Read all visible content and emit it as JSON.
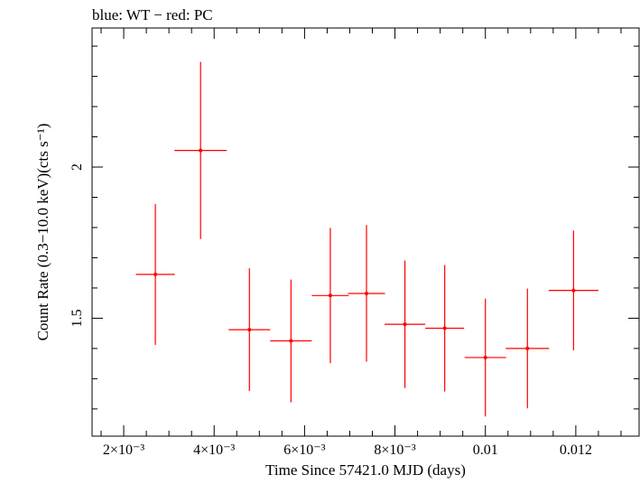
{
  "chart_data": {
    "type": "scatter",
    "title": "blue: WT − red: PC",
    "xlabel": "Time Since 57421.0 MJD (days)",
    "ylabel": "Count Rate (0.3−10.0 keV)(cts s⁻¹)",
    "xlim": [
      0.0013,
      0.0134
    ],
    "ylim": [
      1.11,
      2.46
    ],
    "x_ticks": [
      {
        "value": 0.002,
        "label": "2×10⁻³"
      },
      {
        "value": 0.004,
        "label": "4×10⁻³"
      },
      {
        "value": 0.006,
        "label": "6×10⁻³"
      },
      {
        "value": 0.008,
        "label": "8×10⁻³"
      },
      {
        "value": 0.01,
        "label": "0.01"
      },
      {
        "value": 0.012,
        "label": "0.012"
      }
    ],
    "y_ticks": [
      {
        "value": 1.5,
        "label": "1.5"
      },
      {
        "value": 2.0,
        "label": "2"
      }
    ],
    "grid": false,
    "series": [
      {
        "name": "PC",
        "color": "#ff0000",
        "points": [
          {
            "x": 0.0027,
            "y": 1.645,
            "xerr": 0.00043,
            "yerr": 0.233
          },
          {
            "x": 0.0037,
            "y": 2.055,
            "xerr": 0.00058,
            "yerr": 0.293
          },
          {
            "x": 0.00478,
            "y": 1.462,
            "xerr": 0.00046,
            "yerr": 0.203
          },
          {
            "x": 0.0057,
            "y": 1.425,
            "xerr": 0.00046,
            "yerr": 0.203
          },
          {
            "x": 0.00657,
            "y": 1.575,
            "xerr": 0.00041,
            "yerr": 0.224
          },
          {
            "x": 0.00737,
            "y": 1.582,
            "xerr": 0.00041,
            "yerr": 0.226
          },
          {
            "x": 0.00822,
            "y": 1.48,
            "xerr": 0.00045,
            "yerr": 0.211
          },
          {
            "x": 0.0091,
            "y": 1.467,
            "xerr": 0.00043,
            "yerr": 0.209
          },
          {
            "x": 0.01,
            "y": 1.37,
            "xerr": 0.00046,
            "yerr": 0.195
          },
          {
            "x": 0.01093,
            "y": 1.4,
            "xerr": 0.00048,
            "yerr": 0.198
          },
          {
            "x": 0.01195,
            "y": 1.592,
            "xerr": 0.00055,
            "yerr": 0.198
          }
        ]
      }
    ]
  }
}
